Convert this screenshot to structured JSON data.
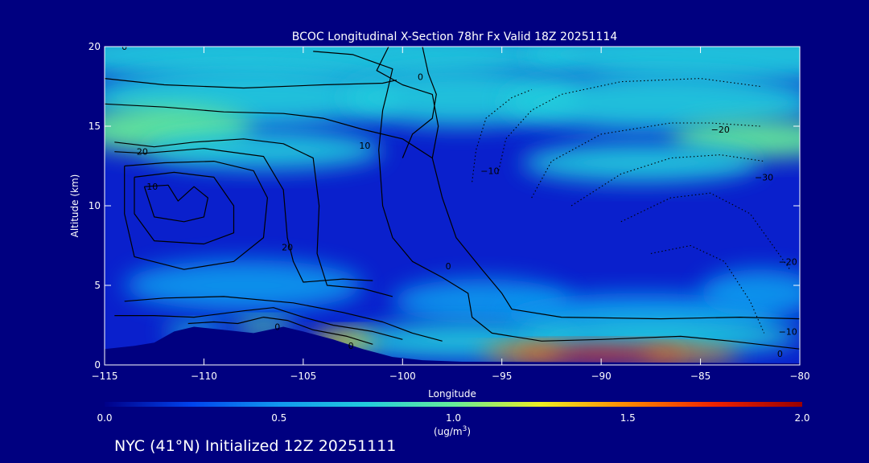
{
  "chart_data": {
    "type": "heatmap",
    "title": "BCOC Longitudinal X-Section 78hr  Fx Valid 18Z 20251114",
    "xlabel": "Longitude",
    "ylabel": "Altitude (km)",
    "xlim": [
      -115,
      -80
    ],
    "ylim": [
      0,
      20
    ],
    "x_ticks": [
      -115,
      -110,
      -105,
      -100,
      -95,
      -90,
      -85,
      -80
    ],
    "x_tick_labels": [
      "−115",
      "−110",
      "−105",
      "−100",
      "−95",
      "−90",
      "−85",
      "−80"
    ],
    "y_ticks": [
      0,
      5,
      10,
      15,
      20
    ],
    "y_tick_labels": [
      "0",
      "5",
      "10",
      "15",
      "20"
    ],
    "colorbar": {
      "min": 0.0,
      "max": 2.0,
      "tick_values": [
        0.0,
        0.5,
        1.0,
        1.5,
        2.0
      ],
      "tick_labels": [
        "0.0",
        "0.5",
        "1.0",
        "1.5",
        "2.0"
      ],
      "unit_prefix": "(ug/m",
      "unit_sup": "3",
      "unit_suffix": ")",
      "colors": [
        "#000088",
        "#0044ee",
        "#1199ee",
        "#22ccdd",
        "#66ee99",
        "#eeee22",
        "#ff8800",
        "#ee2200",
        "#990000"
      ]
    },
    "field_blobs": [
      {
        "lon": -105,
        "alt": 19.5,
        "value": 0.8,
        "r_lon": 14,
        "r_alt": 1.8
      },
      {
        "lon": -84,
        "alt": 19.5,
        "value": 0.8,
        "r_lon": 10,
        "r_alt": 1.8
      },
      {
        "lon": -108,
        "alt": 16.8,
        "value": 0.82,
        "r_lon": 8,
        "r_alt": 1.8
      },
      {
        "lon": -97,
        "alt": 16.8,
        "value": 0.84,
        "r_lon": 6,
        "r_alt": 1.8
      },
      {
        "lon": -87,
        "alt": 16.5,
        "value": 0.82,
        "r_lon": 8,
        "r_alt": 1.8
      },
      {
        "lon": -112,
        "alt": 14.8,
        "value": 0.98,
        "r_lon": 4.5,
        "r_alt": 1.5
      },
      {
        "lon": -82,
        "alt": 14.2,
        "value": 1.0,
        "r_lon": 4.5,
        "r_alt": 1.2
      },
      {
        "lon": -107,
        "alt": 13.5,
        "value": 0.72,
        "r_lon": 6,
        "r_alt": 1.2
      },
      {
        "lon": -88,
        "alt": 12.7,
        "value": 0.7,
        "r_lon": 6,
        "r_alt": 1.2
      },
      {
        "lon": -108,
        "alt": 5.0,
        "value": 0.4,
        "r_lon": 6,
        "r_alt": 1.6
      },
      {
        "lon": -96,
        "alt": 4.0,
        "value": 0.62,
        "r_lon": 4.5,
        "r_alt": 1.4
      },
      {
        "lon": -88,
        "alt": 3.2,
        "value": 0.62,
        "r_lon": 7,
        "r_alt": 1.3
      },
      {
        "lon": -82,
        "alt": 4.5,
        "value": 0.6,
        "r_lon": 3,
        "r_alt": 1.5
      },
      {
        "lon": -97,
        "alt": 1.5,
        "value": 0.75,
        "r_lon": 6,
        "r_alt": 1.1
      },
      {
        "lon": -87,
        "alt": 1.8,
        "value": 0.8,
        "r_lon": 7,
        "r_alt": 1.1
      },
      {
        "lon": -103,
        "alt": 1.5,
        "value": 1.2,
        "r_lon": 1.6,
        "r_alt": 0.6
      },
      {
        "lon": -107,
        "alt": 2.4,
        "value": 1.05,
        "r_lon": 1.5,
        "r_alt": 0.45
      },
      {
        "lon": -110.5,
        "alt": 2.1,
        "value": 0.75,
        "r_lon": 1.5,
        "r_alt": 0.5
      },
      {
        "lon": -90,
        "alt": 0.7,
        "value": 1.8,
        "r_lon": 4.5,
        "r_alt": 0.55
      },
      {
        "lon": -85.5,
        "alt": 0.7,
        "value": 1.55,
        "r_lon": 2.5,
        "r_alt": 0.45
      },
      {
        "lon": -94,
        "alt": 0.8,
        "value": 1.4,
        "r_lon": 2.0,
        "r_alt": 0.45
      }
    ],
    "terrain": [
      [
        -115,
        1.0
      ],
      [
        -113.5,
        1.2
      ],
      [
        -112.5,
        1.4
      ],
      [
        -111.5,
        2.1
      ],
      [
        -110.5,
        2.4
      ],
      [
        -109,
        2.2
      ],
      [
        -107.5,
        2.0
      ],
      [
        -106,
        2.4
      ],
      [
        -105,
        2.1
      ],
      [
        -103.5,
        1.6
      ],
      [
        -102,
        1.0
      ],
      [
        -100.5,
        0.5
      ],
      [
        -99,
        0.3
      ],
      [
        -97,
        0.2
      ],
      [
        -80,
        0.1
      ]
    ],
    "contours": [
      {
        "style": "solid",
        "points": [
          [
            -115,
            18.0
          ],
          [
            -112,
            17.6
          ],
          [
            -108,
            17.4
          ],
          [
            -104,
            17.6
          ],
          [
            -101,
            17.7
          ],
          [
            -100.3,
            17.9
          ]
        ]
      },
      {
        "style": "solid",
        "points": [
          [
            -115,
            16.4
          ],
          [
            -112,
            16.2
          ],
          [
            -109,
            15.9
          ],
          [
            -106,
            15.8
          ],
          [
            -104,
            15.5
          ],
          [
            -102,
            14.8
          ],
          [
            -100,
            14.2
          ],
          [
            -98.5,
            13.0
          ]
        ]
      },
      {
        "style": "solid",
        "points": [
          [
            -114.5,
            14.0
          ],
          [
            -112.5,
            13.7
          ],
          [
            -110.5,
            14.0
          ],
          [
            -108,
            14.2
          ],
          [
            -106,
            13.9
          ],
          [
            -104.5,
            13.0
          ],
          [
            -104.2,
            10.0
          ],
          [
            -104.3,
            7.0
          ],
          [
            -103.8,
            5.0
          ],
          [
            -102.0,
            4.8
          ],
          [
            -100.5,
            4.3
          ]
        ]
      },
      {
        "style": "solid",
        "points": [
          [
            -114.5,
            13.4
          ],
          [
            -113.0,
            13.3
          ],
          [
            -110.0,
            13.6
          ],
          [
            -107.0,
            13.1
          ],
          [
            -106.0,
            11.0
          ],
          [
            -105.8,
            8.0
          ],
          [
            -105.5,
            6.5
          ],
          [
            -105.0,
            5.2
          ],
          [
            -103.0,
            5.4
          ],
          [
            -101.5,
            5.3
          ]
        ]
      },
      {
        "style": "solid",
        "points": [
          [
            -114.0,
            12.5
          ],
          [
            -112.0,
            12.7
          ],
          [
            -109.5,
            12.8
          ],
          [
            -107.5,
            12.2
          ],
          [
            -106.8,
            10.5
          ],
          [
            -107.0,
            8.0
          ],
          [
            -108.5,
            6.5
          ],
          [
            -111.0,
            6.0
          ],
          [
            -113.5,
            6.8
          ],
          [
            -114.0,
            9.5
          ],
          [
            -114.0,
            12.5
          ]
        ]
      },
      {
        "style": "solid",
        "points": [
          [
            -113.5,
            11.8
          ],
          [
            -111.5,
            12.1
          ],
          [
            -109.5,
            11.8
          ],
          [
            -108.5,
            10.0
          ],
          [
            -108.5,
            8.3
          ],
          [
            -110.0,
            7.6
          ],
          [
            -112.5,
            7.8
          ],
          [
            -113.5,
            9.5
          ],
          [
            -113.5,
            11.8
          ]
        ]
      },
      {
        "style": "solid",
        "points": [
          [
            -113.0,
            11.2
          ],
          [
            -111.8,
            11.3
          ],
          [
            -111.3,
            10.3
          ],
          [
            -110.5,
            11.2
          ],
          [
            -109.8,
            10.5
          ],
          [
            -110.0,
            9.3
          ],
          [
            -111.0,
            9.0
          ],
          [
            -112.5,
            9.3
          ],
          [
            -113.0,
            11.2
          ]
        ]
      },
      {
        "style": "solid",
        "points": [
          [
            -104.5,
            19.7
          ],
          [
            -102.5,
            19.5
          ],
          [
            -100.5,
            18.6
          ],
          [
            -100.8,
            17.0
          ],
          [
            -101.0,
            16.0
          ],
          [
            -101.2,
            13.5
          ],
          [
            -101.0,
            10.0
          ],
          [
            -100.5,
            8.0
          ],
          [
            -99.5,
            6.5
          ],
          [
            -98.0,
            5.5
          ],
          [
            -96.7,
            4.5
          ],
          [
            -96.5,
            3.0
          ],
          [
            -95.5,
            2.0
          ],
          [
            -93.0,
            1.5
          ],
          [
            -90.0,
            1.6
          ],
          [
            -86.0,
            1.8
          ],
          [
            -83.5,
            1.5
          ],
          [
            -80.0,
            1.0
          ]
        ]
      },
      {
        "style": "solid",
        "points": [
          [
            -100.7,
            20.0
          ],
          [
            -101.3,
            18.5
          ],
          [
            -100.0,
            17.6
          ],
          [
            -98.5,
            17.0
          ],
          [
            -98.2,
            15.0
          ],
          [
            -98.5,
            13.0
          ],
          [
            -98.0,
            10.5
          ],
          [
            -97.3,
            8.0
          ],
          [
            -96.0,
            6.0
          ],
          [
            -95.0,
            4.5
          ],
          [
            -94.5,
            3.5
          ],
          [
            -92.0,
            3.0
          ],
          [
            -87.0,
            2.9
          ],
          [
            -83.0,
            3.0
          ],
          [
            -80.0,
            2.9
          ]
        ]
      },
      {
        "style": "solid",
        "points": [
          [
            -99.0,
            20.0
          ],
          [
            -98.7,
            18.3
          ],
          [
            -98.3,
            17.0
          ],
          [
            -98.5,
            15.5
          ],
          [
            -99.5,
            14.5
          ],
          [
            -100.0,
            13.0
          ]
        ]
      },
      {
        "style": "solid",
        "points": [
          [
            -114.0,
            4.0
          ],
          [
            -112.0,
            4.2
          ],
          [
            -109.0,
            4.3
          ],
          [
            -105.5,
            3.9
          ],
          [
            -103.0,
            3.3
          ],
          [
            -101.0,
            2.7
          ],
          [
            -99.5,
            2.0
          ],
          [
            -98.0,
            1.5
          ]
        ]
      },
      {
        "style": "solid",
        "points": [
          [
            -114.5,
            3.1
          ],
          [
            -112.5,
            3.1
          ],
          [
            -110.5,
            3.0
          ],
          [
            -108.0,
            3.4
          ],
          [
            -106.5,
            3.6
          ],
          [
            -105.0,
            3.0
          ],
          [
            -103.5,
            2.5
          ],
          [
            -101.5,
            2.1
          ],
          [
            -100.0,
            1.6
          ]
        ]
      },
      {
        "style": "solid",
        "points": [
          [
            -110.8,
            2.6
          ],
          [
            -109.5,
            2.7
          ],
          [
            -108.3,
            2.6
          ],
          [
            -107.0,
            3.0
          ],
          [
            -105.8,
            2.8
          ],
          [
            -104.5,
            2.2
          ],
          [
            -102.8,
            1.8
          ],
          [
            -101.5,
            1.3
          ]
        ]
      },
      {
        "style": "dotted",
        "points": [
          [
            -96.5,
            11.5
          ],
          [
            -96.3,
            13.5
          ],
          [
            -95.8,
            15.5
          ],
          [
            -94.5,
            16.8
          ],
          [
            -93.5,
            17.3
          ]
        ]
      },
      {
        "style": "dotted",
        "points": [
          [
            -95.2,
            12.0
          ],
          [
            -94.8,
            14.2
          ],
          [
            -93.5,
            16.0
          ],
          [
            -92.0,
            17.0
          ],
          [
            -89.0,
            17.8
          ],
          [
            -85.0,
            18.0
          ],
          [
            -82.0,
            17.5
          ]
        ]
      },
      {
        "style": "dotted",
        "points": [
          [
            -93.5,
            10.5
          ],
          [
            -92.5,
            12.8
          ],
          [
            -90.0,
            14.5
          ],
          [
            -86.5,
            15.2
          ],
          [
            -84.5,
            15.2
          ],
          [
            -82.0,
            15.0
          ]
        ]
      },
      {
        "style": "dotted",
        "points": [
          [
            -91.5,
            10.0
          ],
          [
            -89.0,
            12.0
          ],
          [
            -86.5,
            13.0
          ],
          [
            -84.0,
            13.2
          ],
          [
            -81.8,
            12.8
          ]
        ]
      },
      {
        "style": "dotted",
        "points": [
          [
            -89.0,
            9.0
          ],
          [
            -86.5,
            10.5
          ],
          [
            -84.5,
            10.8
          ],
          [
            -82.5,
            9.5
          ],
          [
            -80.5,
            6.0
          ]
        ]
      },
      {
        "style": "dotted",
        "points": [
          [
            -87.5,
            7.0
          ],
          [
            -85.5,
            7.5
          ],
          [
            -83.8,
            6.5
          ],
          [
            -82.5,
            4.0
          ],
          [
            -81.8,
            2.0
          ]
        ]
      }
    ],
    "contour_labels": [
      {
        "text": "0",
        "lon": -114.0,
        "alt": 20.0
      },
      {
        "text": "0",
        "lon": -99.1,
        "alt": 18.1
      },
      {
        "text": "20",
        "lon": -113.1,
        "alt": 13.4
      },
      {
        "text": "10",
        "lon": -112.6,
        "alt": 11.2
      },
      {
        "text": "10",
        "lon": -101.9,
        "alt": 13.8
      },
      {
        "text": "20",
        "lon": -105.8,
        "alt": 7.4
      },
      {
        "text": "0",
        "lon": -97.7,
        "alt": 6.2
      },
      {
        "text": "−10",
        "lon": -95.6,
        "alt": 12.2
      },
      {
        "text": "−20",
        "lon": -84.0,
        "alt": 14.8
      },
      {
        "text": "−30",
        "lon": -81.8,
        "alt": 11.8
      },
      {
        "text": "−20",
        "lon": -80.6,
        "alt": 6.5
      },
      {
        "text": "−10",
        "lon": -80.6,
        "alt": 2.1
      },
      {
        "text": "0",
        "lon": -81.0,
        "alt": 0.7
      },
      {
        "text": "0",
        "lon": -106.3,
        "alt": 2.4
      },
      {
        "text": "0",
        "lon": -102.6,
        "alt": 1.2
      }
    ]
  },
  "footer": {
    "caption": "NYC (41°N) Initialized 12Z 20251111"
  }
}
